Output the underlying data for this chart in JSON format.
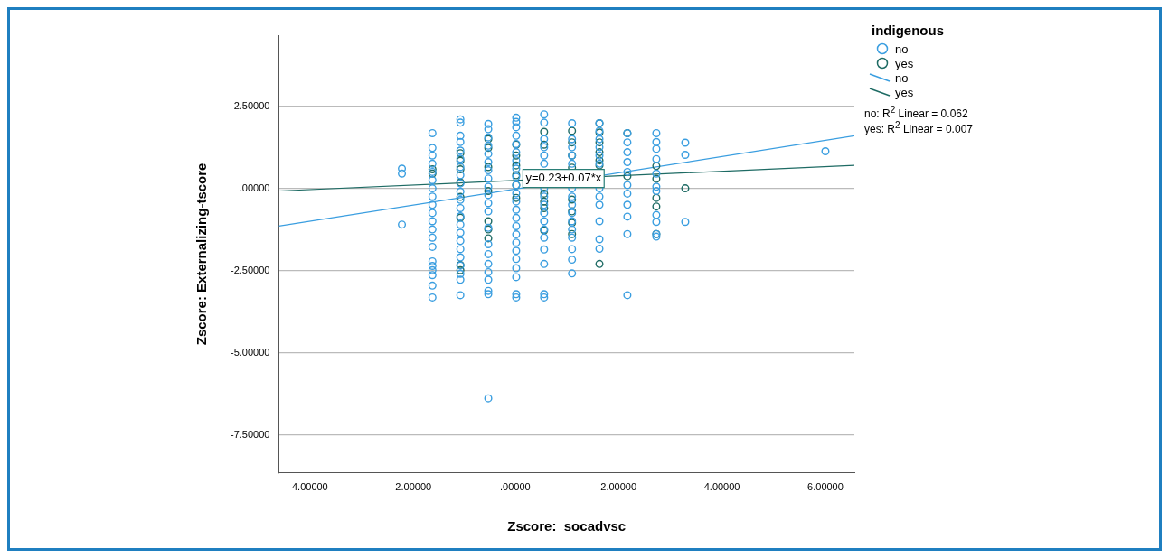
{
  "chart_data": {
    "type": "scatter",
    "xlabel": "Zscore:  socadvsc",
    "ylabel": "Zscore: Externalizing-tscore",
    "legend_title": "indigenous",
    "xlim": [
      -4.57,
      6.56
    ],
    "ylim": [
      -8.66,
      4.66
    ],
    "xticks": [
      {
        "value": -4,
        "label": "-4.00000"
      },
      {
        "value": -2,
        "label": "-2.00000"
      },
      {
        "value": 0,
        "label": ".00000"
      },
      {
        "value": 2,
        "label": "2.00000"
      },
      {
        "value": 4,
        "label": "4.00000"
      },
      {
        "value": 6,
        "label": "6.00000"
      }
    ],
    "yticks": [
      {
        "value": 2.5,
        "label": "2.50000"
      },
      {
        "value": 0,
        "label": ".00000"
      },
      {
        "value": -2.5,
        "label": "-2.50000"
      },
      {
        "value": -5,
        "label": "-5.00000"
      },
      {
        "value": -7.5,
        "label": "-7.50000"
      }
    ],
    "grid": "y",
    "legend": "top right",
    "series": [
      {
        "name": "no",
        "color": "#3a9ee0",
        "x": [
          -2.19,
          -2.19,
          -2.19,
          -1.6,
          -1.6,
          -1.6,
          -1.6,
          -1.6,
          -1.6,
          -1.6,
          -1.6,
          -1.6,
          -1.6,
          -1.6,
          -1.6,
          -1.6,
          -1.6,
          -1.6,
          -1.6,
          -1.6,
          -1.6,
          -1.6,
          -1.6,
          -1.06,
          -1.06,
          -1.06,
          -1.06,
          -1.06,
          -1.06,
          -1.06,
          -1.06,
          -1.06,
          -1.06,
          -1.06,
          -1.06,
          -1.06,
          -1.06,
          -1.06,
          -1.06,
          -1.06,
          -1.06,
          -1.06,
          -1.06,
          -1.06,
          -1.06,
          -0.52,
          -0.52,
          -0.52,
          -0.52,
          -0.52,
          -0.52,
          -0.52,
          -0.52,
          -0.52,
          -0.52,
          -0.52,
          -0.52,
          -0.52,
          -0.52,
          -0.52,
          -0.52,
          -0.52,
          -0.52,
          -0.52,
          -0.52,
          -0.52,
          0.02,
          0.02,
          0.02,
          0.02,
          0.02,
          0.02,
          0.02,
          0.02,
          0.02,
          0.02,
          0.02,
          0.02,
          0.02,
          0.02,
          0.02,
          0.02,
          0.02,
          0.02,
          0.02,
          0.02,
          0.02,
          0.02,
          0.02,
          0.56,
          0.56,
          0.56,
          0.56,
          0.56,
          0.56,
          0.56,
          0.56,
          0.56,
          0.56,
          0.56,
          0.56,
          0.56,
          0.56,
          0.56,
          0.56,
          0.56,
          1.1,
          1.1,
          1.1,
          1.1,
          1.1,
          1.1,
          1.1,
          1.1,
          1.1,
          1.1,
          1.1,
          1.1,
          1.1,
          1.1,
          1.1,
          1.63,
          1.63,
          1.63,
          1.63,
          1.63,
          1.63,
          1.63,
          1.63,
          1.63,
          1.63,
          1.63,
          1.63,
          2.17,
          2.17,
          2.17,
          2.17,
          2.17,
          2.17,
          2.17,
          2.17,
          2.17,
          2.17,
          2.17,
          2.73,
          2.73,
          2.73,
          2.73,
          2.73,
          2.73,
          2.73,
          2.73,
          2.73,
          2.73,
          2.73,
          3.29,
          3.29,
          3.29,
          6.0
        ],
        "values": [
          0.6,
          0.45,
          -1.1,
          1.68,
          1.23,
          1.0,
          0.75,
          0.5,
          0.25,
          0.0,
          -0.25,
          -0.5,
          -0.75,
          -1.0,
          -1.25,
          -1.5,
          -1.78,
          -2.22,
          -2.36,
          -2.49,
          -2.64,
          -2.96,
          -3.32,
          2.1,
          2.0,
          1.6,
          1.41,
          1.15,
          0.9,
          0.65,
          0.4,
          0.15,
          -0.1,
          -0.35,
          -0.6,
          -0.85,
          -1.1,
          -1.35,
          -1.6,
          -1.85,
          -2.1,
          -2.35,
          -2.6,
          -2.78,
          -3.25,
          1.96,
          1.8,
          1.55,
          1.3,
          1.05,
          0.8,
          0.55,
          0.3,
          0.05,
          -0.2,
          -0.45,
          -0.7,
          -1.2,
          -1.7,
          -2.0,
          -2.3,
          -2.55,
          -2.78,
          -3.12,
          -3.22,
          -6.39,
          2.15,
          2.02,
          1.86,
          1.6,
          1.35,
          1.1,
          0.85,
          0.6,
          0.35,
          0.1,
          -0.15,
          -0.4,
          -0.65,
          -0.9,
          -1.15,
          -1.4,
          -1.65,
          -1.9,
          -2.15,
          -2.43,
          -2.7,
          -3.22,
          -3.32,
          2.25,
          2.0,
          1.5,
          1.25,
          1.0,
          0.75,
          0.0,
          -0.25,
          -0.5,
          -0.75,
          -1.0,
          -1.25,
          -1.5,
          -1.86,
          -2.3,
          -3.22,
          -3.32,
          1.98,
          1.5,
          1.25,
          1.0,
          0.75,
          0.0,
          -0.25,
          -0.5,
          -0.75,
          -1.0,
          -1.25,
          -1.5,
          -1.85,
          -2.17,
          -2.59,
          1.98,
          1.75,
          1.5,
          1.25,
          1.0,
          0.75,
          0.0,
          -0.25,
          -0.5,
          -1.0,
          -1.55,
          -1.84,
          1.68,
          1.4,
          1.1,
          0.8,
          0.5,
          0.1,
          -0.16,
          -0.5,
          -0.86,
          -1.39,
          -3.25,
          1.68,
          1.41,
          1.2,
          0.89,
          0.45,
          0.05,
          -0.08,
          -0.81,
          -1.02,
          -1.39,
          -1.47,
          1.39,
          1.02,
          -1.02,
          1.13
        ]
      },
      {
        "name": "yes",
        "color": "#1e6b64",
        "x": [
          -1.6,
          -1.6,
          -1.06,
          -1.06,
          -1.06,
          -1.06,
          -1.06,
          -1.06,
          -1.06,
          -1.06,
          -0.52,
          -0.52,
          -0.52,
          -0.52,
          -0.52,
          -0.52,
          -0.52,
          0.02,
          0.02,
          0.02,
          0.02,
          0.02,
          0.02,
          0.56,
          0.56,
          0.56,
          0.56,
          0.56,
          0.56,
          1.1,
          1.1,
          1.1,
          1.1,
          1.1,
          1.1,
          1.1,
          1.1,
          1.63,
          1.63,
          1.63,
          1.63,
          1.63,
          1.63,
          1.63,
          2.17,
          2.17,
          2.73,
          2.73,
          2.73,
          2.73,
          2.73,
          3.29
        ],
        "values": [
          0.58,
          0.45,
          1.07,
          0.84,
          0.58,
          0.18,
          -0.26,
          -0.89,
          -2.33,
          -2.49,
          1.5,
          1.23,
          0.65,
          -0.08,
          -1.0,
          -1.25,
          -1.52,
          1.33,
          1.0,
          0.7,
          0.4,
          0.1,
          -0.29,
          1.72,
          1.33,
          -0.16,
          -0.4,
          -0.6,
          -1.28,
          1.75,
          1.4,
          1.0,
          0.63,
          -0.34,
          -0.7,
          -1.05,
          -1.39,
          1.98,
          1.7,
          1.4,
          1.1,
          0.85,
          0.7,
          -2.3,
          1.68,
          0.37,
          0.68,
          0.29,
          -0.29,
          -0.55,
          -1.39,
          0.0
        ]
      },
      {
        "name": "no",
        "type": "line",
        "color": "#3a9ee0",
        "x": [
          -4.57,
          6.56
        ],
        "values": [
          -1.15,
          1.6
        ]
      },
      {
        "name": "yes",
        "type": "line",
        "color": "#1e6b64",
        "x": [
          -4.57,
          6.56
        ],
        "values": [
          -0.08,
          0.7
        ]
      }
    ],
    "annotations": [
      {
        "text": "y=0.23+0.07*x",
        "x": 0.15,
        "y": 0.3
      },
      "no: R$^{2}$ Linear = 0.062",
      "yes: R$^{2}$ Linear = 0.007"
    ]
  }
}
